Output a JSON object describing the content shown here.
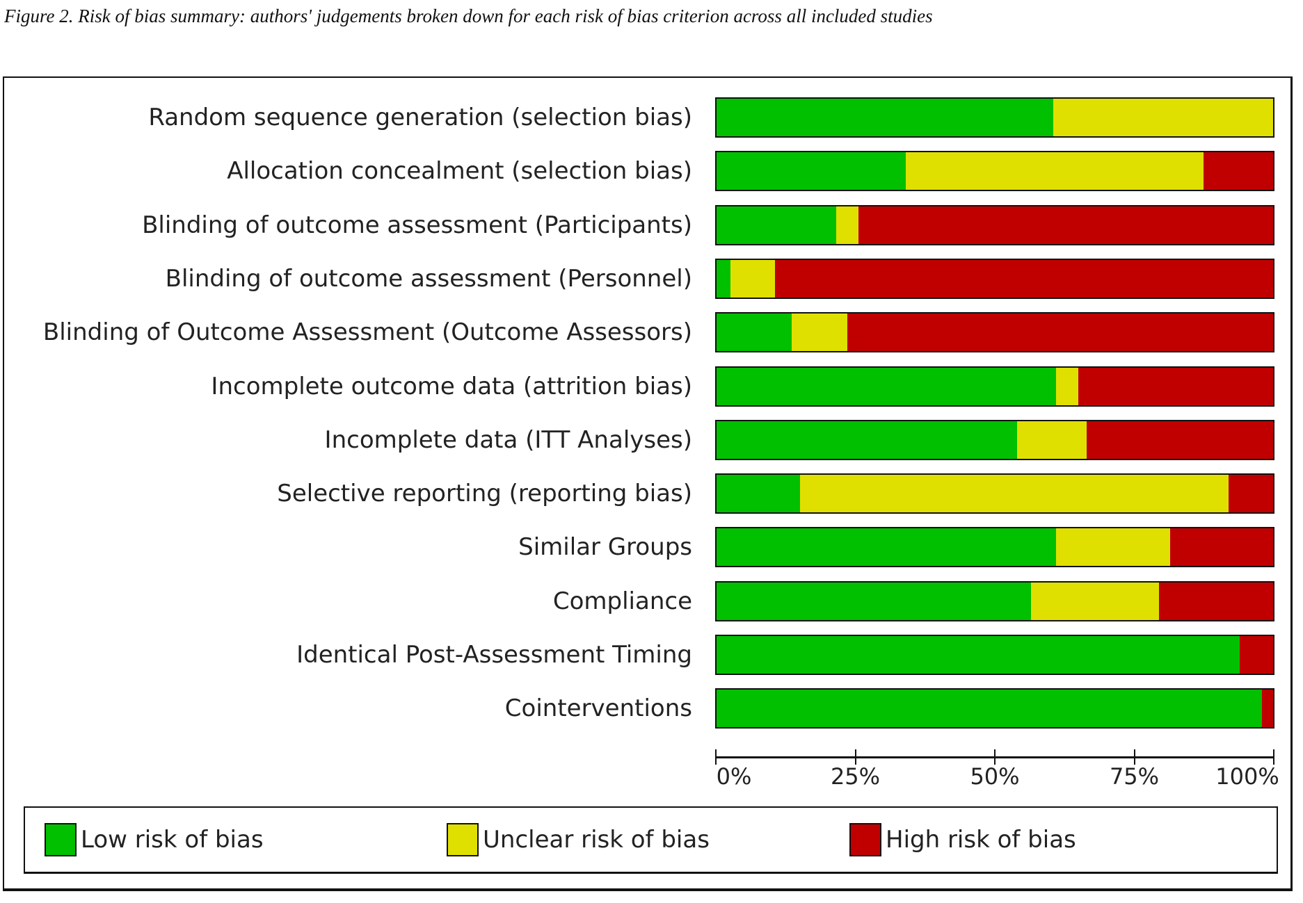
{
  "caption": "Figure 2. Risk of bias summary: authors' judgements broken down for each risk of bias criterion across all included studies",
  "chart_data": {
    "type": "bar",
    "orientation": "horizontal-stacked-100",
    "title": "Figure 2. Risk of bias summary: authors' judgements broken down for each risk of bias criterion across all included studies",
    "categories": [
      "Random sequence generation (selection bias)",
      "Allocation concealment (selection bias)",
      "Blinding of outcome assessment (Participants)",
      "Blinding of outcome assessment (Personnel)",
      "Blinding of Outcome Assessment (Outcome Assessors)",
      "Incomplete outcome data (attrition bias)",
      "Incomplete data (ITT Analyses)",
      "Selective reporting (reporting bias)",
      "Similar Groups",
      "Compliance",
      "Identical Post-Assessment Timing",
      "Cointerventions"
    ],
    "series": [
      {
        "name": "Low risk of bias",
        "color": "#00c000",
        "values": [
          60.5,
          34,
          21.5,
          2.5,
          13.5,
          61,
          54,
          15,
          61,
          56.5,
          94,
          98
        ]
      },
      {
        "name": "Unclear risk of bias",
        "color": "#e0e000",
        "values": [
          39.5,
          53.5,
          4,
          8,
          10,
          4,
          12.5,
          77,
          20.5,
          23,
          0,
          0
        ]
      },
      {
        "name": "High risk of bias",
        "color": "#c00000",
        "values": [
          0,
          12.5,
          74.5,
          89.5,
          76.5,
          35,
          33.5,
          8,
          18.5,
          20.5,
          6,
          2
        ]
      }
    ],
    "xticks": [
      "0%",
      "25%",
      "50%",
      "75%",
      "100%"
    ],
    "xlim": [
      0,
      100
    ],
    "xlabel": "",
    "ylabel": "",
    "legend_position": "bottom",
    "grid": false
  }
}
